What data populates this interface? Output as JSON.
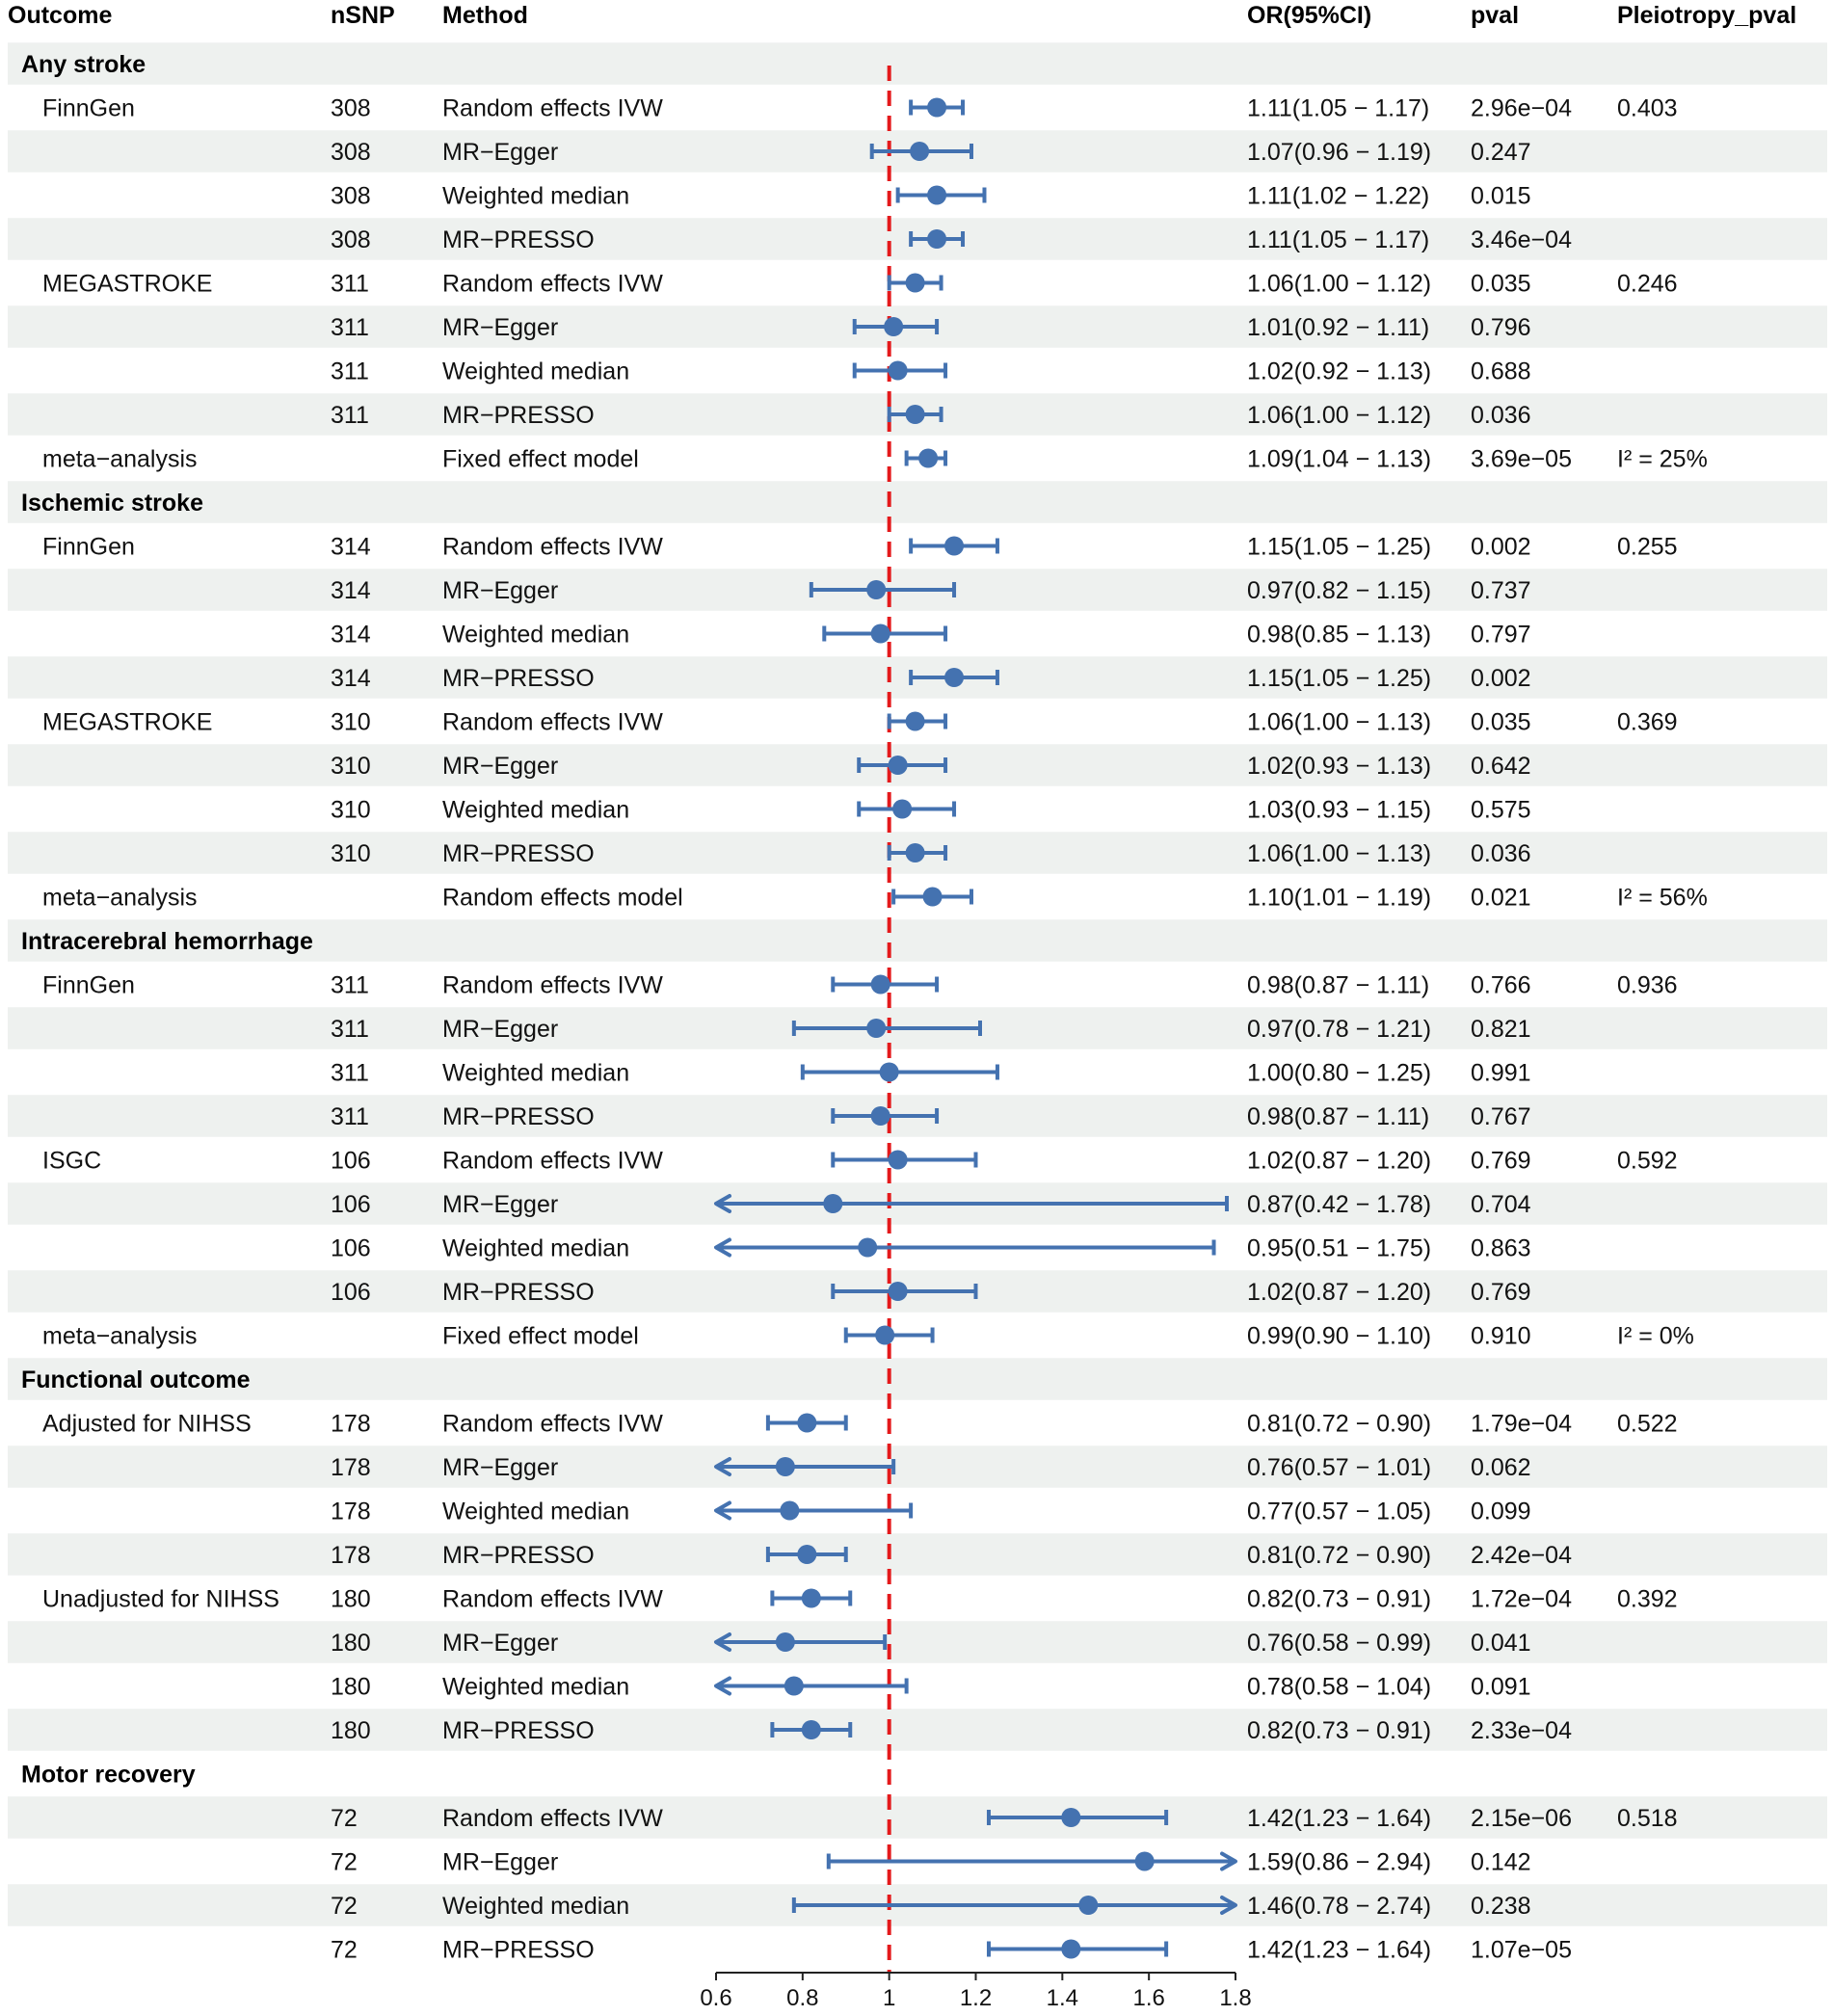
{
  "chart_data": {
    "type": "forest",
    "columns": {
      "outcome": "Outcome",
      "nsnp": "nSNP",
      "method": "Method",
      "or": "OR(95%CI)",
      "pval": "pval",
      "pleio": "Pleiotropy_pval"
    },
    "xaxis": {
      "min": 0.6,
      "max": 1.8,
      "reference": 1,
      "ticks": [
        0.6,
        0.8,
        1,
        1.2,
        1.4,
        1.6,
        1.8
      ],
      "tick_labels": [
        "0.6",
        "0.8",
        "1",
        "1.2",
        "1.4",
        "1.6",
        "1.8"
      ]
    },
    "colors": {
      "point": "#4472B0",
      "reference": "#E41A1C",
      "band": "#EEF1EF"
    },
    "rows": [
      {
        "kind": "header",
        "label": "Any stroke"
      },
      {
        "outcome": "FinnGen",
        "nsnp": "308",
        "method": "Random effects IVW",
        "or": 1.11,
        "lo": 1.05,
        "hi": 1.17,
        "or_text": "1.11(1.05 − 1.17)",
        "pval": "2.96e−04",
        "pleio": "0.403"
      },
      {
        "outcome": "",
        "nsnp": "308",
        "method": "MR−Egger",
        "or": 1.07,
        "lo": 0.96,
        "hi": 1.19,
        "or_text": "1.07(0.96 − 1.19)",
        "pval": "0.247",
        "pleio": ""
      },
      {
        "outcome": "",
        "nsnp": "308",
        "method": "Weighted median",
        "or": 1.11,
        "lo": 1.02,
        "hi": 1.22,
        "or_text": "1.11(1.02 − 1.22)",
        "pval": "0.015",
        "pleio": ""
      },
      {
        "outcome": "",
        "nsnp": "308",
        "method": "MR−PRESSO",
        "or": 1.11,
        "lo": 1.05,
        "hi": 1.17,
        "or_text": "1.11(1.05 − 1.17)",
        "pval": "3.46e−04",
        "pleio": ""
      },
      {
        "outcome": "MEGASTROKE",
        "nsnp": "311",
        "method": "Random effects IVW",
        "or": 1.06,
        "lo": 1.0,
        "hi": 1.12,
        "or_text": "1.06(1.00 − 1.12)",
        "pval": "0.035",
        "pleio": "0.246"
      },
      {
        "outcome": "",
        "nsnp": "311",
        "method": "MR−Egger",
        "or": 1.01,
        "lo": 0.92,
        "hi": 1.11,
        "or_text": "1.01(0.92 − 1.11)",
        "pval": "0.796",
        "pleio": ""
      },
      {
        "outcome": "",
        "nsnp": "311",
        "method": "Weighted median",
        "or": 1.02,
        "lo": 0.92,
        "hi": 1.13,
        "or_text": "1.02(0.92 − 1.13)",
        "pval": "0.688",
        "pleio": ""
      },
      {
        "outcome": "",
        "nsnp": "311",
        "method": "MR−PRESSO",
        "or": 1.06,
        "lo": 1.0,
        "hi": 1.12,
        "or_text": "1.06(1.00 − 1.12)",
        "pval": "0.036",
        "pleio": ""
      },
      {
        "outcome": "meta−analysis",
        "nsnp": "",
        "method": "Fixed effect model",
        "or": 1.09,
        "lo": 1.04,
        "hi": 1.13,
        "or_text": "1.09(1.04 − 1.13)",
        "pval": "3.69e−05",
        "pleio": "I² = 25%"
      },
      {
        "kind": "header",
        "label": "Ischemic stroke"
      },
      {
        "outcome": "FinnGen",
        "nsnp": "314",
        "method": "Random effects IVW",
        "or": 1.15,
        "lo": 1.05,
        "hi": 1.25,
        "or_text": "1.15(1.05 − 1.25)",
        "pval": "0.002",
        "pleio": "0.255"
      },
      {
        "outcome": "",
        "nsnp": "314",
        "method": "MR−Egger",
        "or": 0.97,
        "lo": 0.82,
        "hi": 1.15,
        "or_text": "0.97(0.82 − 1.15)",
        "pval": "0.737",
        "pleio": ""
      },
      {
        "outcome": "",
        "nsnp": "314",
        "method": "Weighted median",
        "or": 0.98,
        "lo": 0.85,
        "hi": 1.13,
        "or_text": "0.98(0.85 − 1.13)",
        "pval": "0.797",
        "pleio": ""
      },
      {
        "outcome": "",
        "nsnp": "314",
        "method": "MR−PRESSO",
        "or": 1.15,
        "lo": 1.05,
        "hi": 1.25,
        "or_text": "1.15(1.05 − 1.25)",
        "pval": "0.002",
        "pleio": ""
      },
      {
        "outcome": "MEGASTROKE",
        "nsnp": "310",
        "method": "Random effects IVW",
        "or": 1.06,
        "lo": 1.0,
        "hi": 1.13,
        "or_text": "1.06(1.00 − 1.13)",
        "pval": "0.035",
        "pleio": "0.369"
      },
      {
        "outcome": "",
        "nsnp": "310",
        "method": "MR−Egger",
        "or": 1.02,
        "lo": 0.93,
        "hi": 1.13,
        "or_text": "1.02(0.93 − 1.13)",
        "pval": "0.642",
        "pleio": ""
      },
      {
        "outcome": "",
        "nsnp": "310",
        "method": "Weighted median",
        "or": 1.03,
        "lo": 0.93,
        "hi": 1.15,
        "or_text": "1.03(0.93 − 1.15)",
        "pval": "0.575",
        "pleio": ""
      },
      {
        "outcome": "",
        "nsnp": "310",
        "method": "MR−PRESSO",
        "or": 1.06,
        "lo": 1.0,
        "hi": 1.13,
        "or_text": "1.06(1.00 − 1.13)",
        "pval": "0.036",
        "pleio": ""
      },
      {
        "outcome": "meta−analysis",
        "nsnp": "",
        "method": "Random effects model",
        "or": 1.1,
        "lo": 1.01,
        "hi": 1.19,
        "or_text": "1.10(1.01 − 1.19)",
        "pval": "0.021",
        "pleio": "I² = 56%"
      },
      {
        "kind": "header",
        "label": "Intracerebral hemorrhage"
      },
      {
        "outcome": "FinnGen",
        "nsnp": "311",
        "method": "Random effects IVW",
        "or": 0.98,
        "lo": 0.87,
        "hi": 1.11,
        "or_text": "0.98(0.87 − 1.11)",
        "pval": "0.766",
        "pleio": "0.936"
      },
      {
        "outcome": "",
        "nsnp": "311",
        "method": "MR−Egger",
        "or": 0.97,
        "lo": 0.78,
        "hi": 1.21,
        "or_text": "0.97(0.78 − 1.21)",
        "pval": "0.821",
        "pleio": ""
      },
      {
        "outcome": "",
        "nsnp": "311",
        "method": "Weighted median",
        "or": 1.0,
        "lo": 0.8,
        "hi": 1.25,
        "or_text": "1.00(0.80 − 1.25)",
        "pval": "0.991",
        "pleio": ""
      },
      {
        "outcome": "",
        "nsnp": "311",
        "method": "MR−PRESSO",
        "or": 0.98,
        "lo": 0.87,
        "hi": 1.11,
        "or_text": "0.98(0.87 − 1.11)",
        "pval": "0.767",
        "pleio": ""
      },
      {
        "outcome": "ISGC",
        "nsnp": "106",
        "method": "Random effects IVW",
        "or": 1.02,
        "lo": 0.87,
        "hi": 1.2,
        "or_text": "1.02(0.87 − 1.20)",
        "pval": "0.769",
        "pleio": "0.592"
      },
      {
        "outcome": "",
        "nsnp": "106",
        "method": "MR−Egger",
        "or": 0.87,
        "lo": 0.42,
        "hi": 1.78,
        "or_text": "0.87(0.42 − 1.78)",
        "pval": "0.704",
        "pleio": ""
      },
      {
        "outcome": "",
        "nsnp": "106",
        "method": "Weighted median",
        "or": 0.95,
        "lo": 0.51,
        "hi": 1.75,
        "or_text": "0.95(0.51 − 1.75)",
        "pval": "0.863",
        "pleio": ""
      },
      {
        "outcome": "",
        "nsnp": "106",
        "method": "MR−PRESSO",
        "or": 1.02,
        "lo": 0.87,
        "hi": 1.2,
        "or_text": "1.02(0.87 − 1.20)",
        "pval": "0.769",
        "pleio": ""
      },
      {
        "outcome": "meta−analysis",
        "nsnp": "",
        "method": "Fixed effect model",
        "or": 0.99,
        "lo": 0.9,
        "hi": 1.1,
        "or_text": "0.99(0.90 − 1.10)",
        "pval": "0.910",
        "pleio": "I² = 0%"
      },
      {
        "kind": "header",
        "label": "Functional outcome"
      },
      {
        "outcome": "Adjusted for NIHSS",
        "nsnp": "178",
        "method": "Random effects IVW",
        "or": 0.81,
        "lo": 0.72,
        "hi": 0.9,
        "or_text": "0.81(0.72 − 0.90)",
        "pval": "1.79e−04",
        "pleio": "0.522"
      },
      {
        "outcome": "",
        "nsnp": "178",
        "method": "MR−Egger",
        "or": 0.76,
        "lo": 0.57,
        "hi": 1.01,
        "or_text": "0.76(0.57 − 1.01)",
        "pval": "0.062",
        "pleio": ""
      },
      {
        "outcome": "",
        "nsnp": "178",
        "method": "Weighted median",
        "or": 0.77,
        "lo": 0.57,
        "hi": 1.05,
        "or_text": "0.77(0.57 − 1.05)",
        "pval": "0.099",
        "pleio": ""
      },
      {
        "outcome": "",
        "nsnp": "178",
        "method": "MR−PRESSO",
        "or": 0.81,
        "lo": 0.72,
        "hi": 0.9,
        "or_text": "0.81(0.72 − 0.90)",
        "pval": "2.42e−04",
        "pleio": ""
      },
      {
        "outcome": "Unadjusted for NIHSS",
        "nsnp": "180",
        "method": "Random effects IVW",
        "or": 0.82,
        "lo": 0.73,
        "hi": 0.91,
        "or_text": "0.82(0.73 − 0.91)",
        "pval": "1.72e−04",
        "pleio": "0.392"
      },
      {
        "outcome": "",
        "nsnp": "180",
        "method": "MR−Egger",
        "or": 0.76,
        "lo": 0.58,
        "hi": 0.99,
        "or_text": "0.76(0.58 − 0.99)",
        "pval": "0.041",
        "pleio": ""
      },
      {
        "outcome": "",
        "nsnp": "180",
        "method": "Weighted median",
        "or": 0.78,
        "lo": 0.58,
        "hi": 1.04,
        "or_text": "0.78(0.58 − 1.04)",
        "pval": "0.091",
        "pleio": ""
      },
      {
        "outcome": "",
        "nsnp": "180",
        "method": "MR−PRESSO",
        "or": 0.82,
        "lo": 0.73,
        "hi": 0.91,
        "or_text": "0.82(0.73 − 0.91)",
        "pval": "2.33e−04",
        "pleio": ""
      },
      {
        "kind": "header",
        "label": "Motor recovery"
      },
      {
        "outcome": "",
        "nsnp": "72",
        "method": "Random effects IVW",
        "or": 1.42,
        "lo": 1.23,
        "hi": 1.64,
        "or_text": "1.42(1.23 − 1.64)",
        "pval": "2.15e−06",
        "pleio": "0.518"
      },
      {
        "outcome": "",
        "nsnp": "72",
        "method": "MR−Egger",
        "or": 1.59,
        "lo": 0.86,
        "hi": 2.94,
        "or_text": "1.59(0.86 − 2.94)",
        "pval": "0.142",
        "pleio": ""
      },
      {
        "outcome": "",
        "nsnp": "72",
        "method": "Weighted median",
        "or": 1.46,
        "lo": 0.78,
        "hi": 2.74,
        "or_text": "1.46(0.78 − 2.74)",
        "pval": "0.238",
        "pleio": ""
      },
      {
        "outcome": "",
        "nsnp": "72",
        "method": "MR−PRESSO",
        "or": 1.42,
        "lo": 1.23,
        "hi": 1.64,
        "or_text": "1.42(1.23 − 1.64)",
        "pval": "1.07e−05",
        "pleio": ""
      }
    ]
  }
}
